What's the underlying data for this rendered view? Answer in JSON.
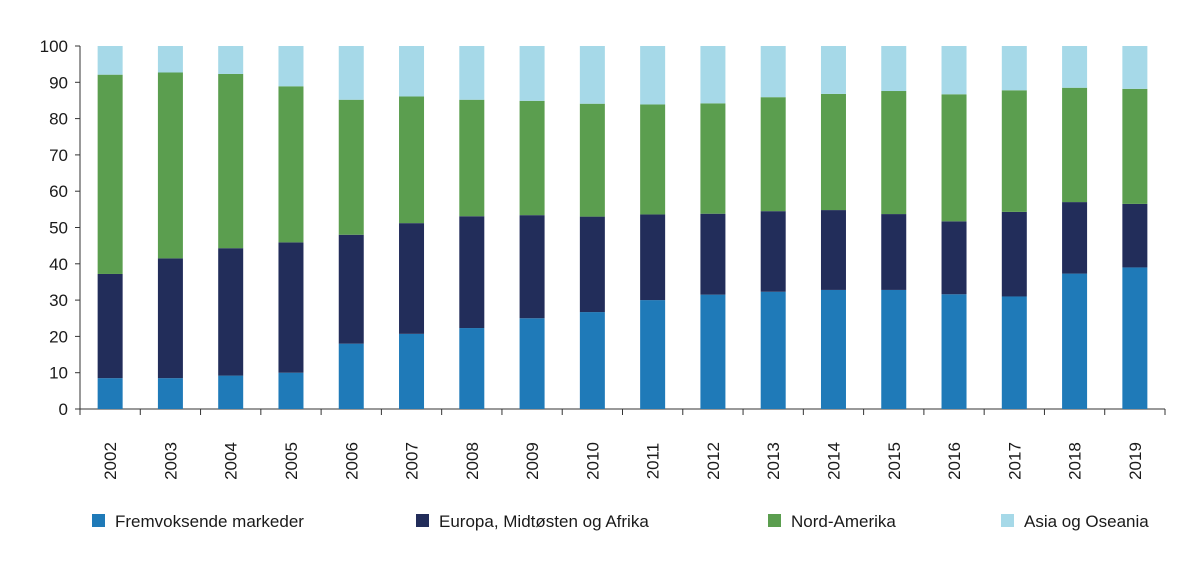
{
  "chart_data": {
    "type": "bar",
    "stacked": true,
    "title": "",
    "xlabel": "",
    "ylabel": "",
    "ylim": [
      0,
      100
    ],
    "yticks": [
      0,
      10,
      20,
      30,
      40,
      50,
      60,
      70,
      80,
      90,
      100
    ],
    "grid": false,
    "legend_position": "bottom",
    "categories": [
      "2002",
      "2003",
      "2004",
      "2005",
      "2006",
      "2007",
      "2008",
      "2009",
      "2010",
      "2011",
      "2012",
      "2013",
      "2014",
      "2015",
      "2016",
      "2017",
      "2018",
      "2019"
    ],
    "series": [
      {
        "name": "Fremvoksende markeder",
        "color": "#1f7ab8",
        "values": [
          8.5,
          8.5,
          9.2,
          10.0,
          18.0,
          20.7,
          22.3,
          25.0,
          26.7,
          30.0,
          31.5,
          32.3,
          32.8,
          32.8,
          31.6,
          31.0,
          37.3,
          39.0
        ]
      },
      {
        "name": "Europa, Midtøsten og Afrika",
        "color": "#222d5a",
        "values": [
          28.7,
          33.0,
          35.1,
          35.9,
          30.0,
          30.5,
          30.8,
          28.4,
          26.3,
          23.6,
          22.3,
          22.2,
          22.0,
          20.9,
          20.1,
          23.3,
          19.7,
          17.5
        ]
      },
      {
        "name": "Nord-Amerika",
        "color": "#5b9e4f",
        "values": [
          54.9,
          51.2,
          48.0,
          43.0,
          37.2,
          34.9,
          32.1,
          31.5,
          31.1,
          30.3,
          30.4,
          31.4,
          32.0,
          33.9,
          35.0,
          33.5,
          31.5,
          31.7
        ]
      },
      {
        "name": "Asia og Oseania",
        "color": "#a6d9e8",
        "values": [
          7.9,
          7.3,
          7.7,
          11.1,
          14.8,
          13.9,
          14.8,
          15.1,
          15.9,
          16.1,
          15.8,
          14.1,
          13.2,
          12.4,
          13.3,
          12.2,
          11.5,
          11.8
        ]
      }
    ]
  }
}
